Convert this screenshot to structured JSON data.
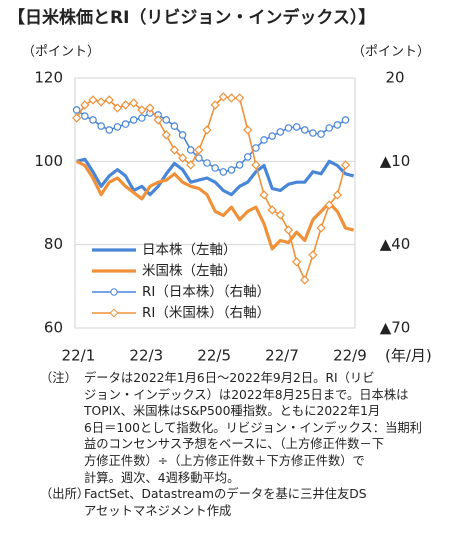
{
  "chart_data": {
    "type": "line",
    "title": "【日米株価とRI（リビジョン・インデックス）】",
    "ylabel": "（ポイント）",
    "y2label": "（ポイント）",
    "xlabel": "(年/月)",
    "x": [
      0.95,
      1.19,
      1.43,
      1.67,
      1.91,
      2.15,
      2.39,
      2.63,
      2.87,
      3.11,
      3.35,
      3.59,
      3.83,
      4.07,
      4.31,
      4.55,
      4.79,
      5.03,
      5.27,
      5.51,
      5.75,
      5.99,
      6.23,
      6.47,
      6.71,
      6.95,
      7.19,
      7.43,
      7.67,
      7.91,
      8.15,
      8.39,
      8.63,
      8.87,
      9.11
    ],
    "xlim": [
      0.9,
      9.15
    ],
    "xticks": [
      {
        "value": 1,
        "label": "22/1"
      },
      {
        "value": 3,
        "label": "22/3"
      },
      {
        "value": 5,
        "label": "22/5"
      },
      {
        "value": 7,
        "label": "22/7"
      },
      {
        "value": 9,
        "label": "22/9"
      }
    ],
    "ylim": [
      60,
      120
    ],
    "yticks": [
      60,
      80,
      100,
      120
    ],
    "y2lim": [
      -70,
      20
    ],
    "y2ticks": [
      {
        "value": -70,
        "label": "▲70"
      },
      {
        "value": -40,
        "label": "▲40"
      },
      {
        "value": -10,
        "label": "▲10"
      },
      20
    ],
    "grid": true,
    "legend": "lower left",
    "series": [
      {
        "name": "日本株（左軸）",
        "color": "#4a86d8",
        "marker": false,
        "values": [
          100,
          100.5,
          97.5,
          94,
          96.5,
          98,
          96.5,
          93,
          94,
          92,
          94,
          97,
          99.5,
          98,
          95,
          95.5,
          96,
          95,
          93,
          92,
          94,
          95,
          97.5,
          99,
          93.5,
          93,
          94.5,
          95,
          95,
          97.5,
          97,
          100,
          99,
          97,
          96.5
        ]
      },
      {
        "name": "米国株（左軸）",
        "color": "#f0913a",
        "marker": false,
        "values": [
          100,
          99,
          96,
          92,
          95,
          96,
          94,
          92.5,
          91,
          94,
          95,
          95.5,
          97,
          95,
          94,
          93.5,
          92,
          88,
          87,
          89,
          86,
          88,
          89,
          85,
          79,
          81,
          80.5,
          83,
          81,
          86,
          88,
          90,
          88,
          84,
          83.5
        ]
      },
      {
        "name": "RI（日本株）（右軸）",
        "color": "#4a86d8",
        "marker": "circle",
        "axis": "y2",
        "values": [
          8.5,
          6.3,
          4.9,
          2.7,
          1.3,
          2.4,
          3.4,
          4.9,
          5.6,
          7.4,
          6.7,
          4.9,
          2.7,
          -0.5,
          -5.9,
          -8.8,
          -10.6,
          -12.4,
          -13.8,
          -13.1,
          -11.3,
          -8.4,
          -5.2,
          -2.3,
          -0.9,
          0.6,
          2,
          2.4,
          1.3,
          0.2,
          -0.2,
          2,
          3.1,
          4.9,
          null
        ]
      },
      {
        "name": "RI（米国株）（右軸）",
        "color": "#f0913a",
        "marker": "diamond",
        "axis": "y2",
        "values": [
          5.6,
          10.3,
          12.1,
          11.4,
          12.1,
          9.2,
          10.3,
          11,
          8.5,
          9.2,
          4.9,
          -0.5,
          -5.9,
          -8.8,
          -11.3,
          -5.9,
          1.3,
          10.3,
          13.2,
          12.8,
          12.8,
          1.3,
          -11.3,
          -22.1,
          -27.5,
          -29.3,
          -34.7,
          -46.2,
          -52.7,
          -43.7,
          -34,
          -25.7,
          -22.1,
          -11.3,
          null
        ]
      }
    ],
    "note_label": "（注）",
    "note_lines": [
      "データは2022年1月6日～2022年9月2日。RI（リビ",
      "ジョン・インデックス）は2022年8月25日まで。日本株は",
      "TOPIX、米国株はS&P500種指数。ともに2022年1月",
      "6日＝100として指数化。リビジョン・インデックス：当期利",
      "益のコンセンサス予想をベースに、（上方修正件数－下",
      "方修正件数）÷（上方修正件数＋下方修正件数）で",
      "計算。週次、4週移動平均。"
    ],
    "source_label": "（出所）",
    "source_lines": [
      "FactSet、Datastreamのデータを基に三井住友DS",
      "アセットマネジメント作成"
    ]
  }
}
